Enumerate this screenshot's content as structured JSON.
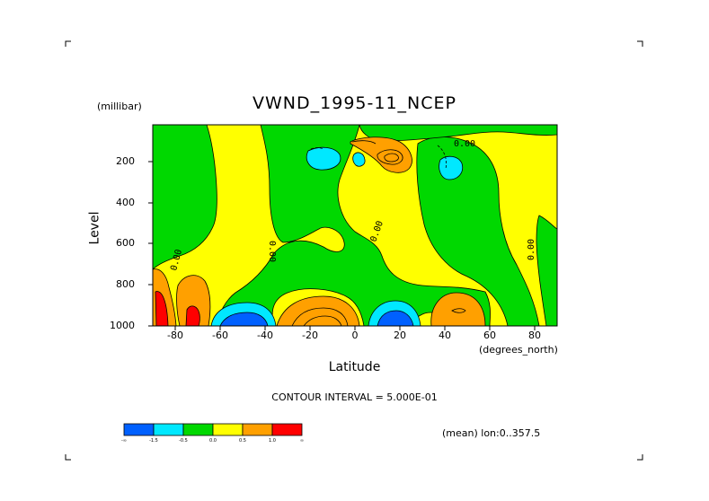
{
  "chart_data": {
    "type": "contour",
    "title": "VWND_1995-11_NCEP",
    "xlabel": "Latitude",
    "x_unit": "(degrees_north)",
    "ylabel": "Level",
    "y_unit": "(millibar)",
    "xlim": [
      -90,
      90
    ],
    "ylim": [
      1000,
      40
    ],
    "x_ticks": [
      "-80",
      "-60",
      "-40",
      "-20",
      "0",
      "20",
      "40",
      "60",
      "80"
    ],
    "y_ticks": [
      "200",
      "400",
      "600",
      "800",
      "1000"
    ],
    "contour_interval_text": "CONTOUR INTERVAL = 5.000E-01",
    "mean_text": "(mean) lon:0..357.5",
    "contour_labels": [
      "0.00",
      "0.00",
      "0.00",
      "0.00",
      "0.00"
    ],
    "colorbar": {
      "colors": [
        "#0060ff",
        "#00e8ff",
        "#00d800",
        "#ffff00",
        "#ffa000",
        "#ff0000"
      ],
      "labels": [
        "-∞",
        "-1.5",
        "-0.5",
        "0.0",
        "0.5",
        "1.0",
        "∞"
      ]
    }
  }
}
